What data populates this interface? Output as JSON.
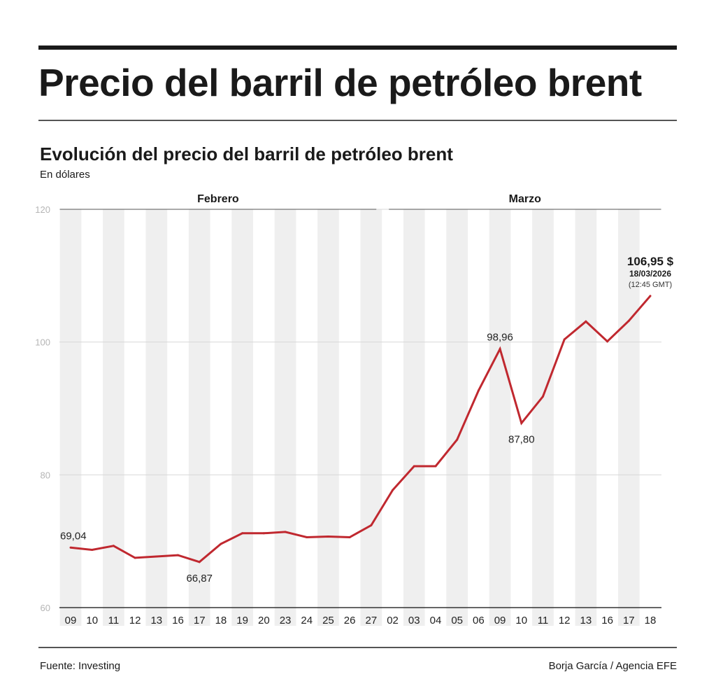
{
  "header": {
    "title": "Precio del barril de petróleo brent"
  },
  "chart_data": {
    "type": "line",
    "title": "Evolución del precio del barril de petróleo brent",
    "ylabel": "En dólares",
    "xlabel": "",
    "ylim": [
      60,
      120
    ],
    "yticks": [
      60,
      80,
      100,
      120
    ],
    "grid": true,
    "month_groups": [
      {
        "label": "Febrero",
        "count": 15
      },
      {
        "label": "Marzo",
        "count": 13
      }
    ],
    "categories": [
      "09",
      "10",
      "11",
      "12",
      "13",
      "16",
      "17",
      "18",
      "19",
      "20",
      "23",
      "24",
      "25",
      "26",
      "27",
      "02",
      "03",
      "04",
      "05",
      "06",
      "09",
      "10",
      "11",
      "12",
      "13",
      "16",
      "17",
      "18"
    ],
    "values": [
      69.04,
      68.7,
      69.3,
      67.5,
      67.7,
      67.9,
      66.87,
      69.6,
      71.2,
      71.2,
      71.4,
      70.6,
      70.7,
      70.6,
      72.4,
      77.7,
      81.3,
      81.3,
      85.3,
      92.7,
      98.96,
      87.8,
      91.8,
      100.4,
      103.1,
      100.1,
      103.2,
      106.95
    ],
    "line_color": "#c0282f",
    "band_color": "#efefef",
    "annotations": [
      {
        "index": 0,
        "label": "69,04",
        "position": "above"
      },
      {
        "index": 6,
        "label": "66,87",
        "position": "below"
      },
      {
        "index": 20,
        "label": "98,96",
        "position": "above"
      },
      {
        "index": 21,
        "label": "87,80",
        "position": "below"
      }
    ],
    "last_value": {
      "value": "106,95 $",
      "date": "18/03/2026",
      "time": "(12:45 GMT)"
    }
  },
  "footer": {
    "source": "Fuente: Investing",
    "credit": "Borja García / Agencia EFE"
  }
}
